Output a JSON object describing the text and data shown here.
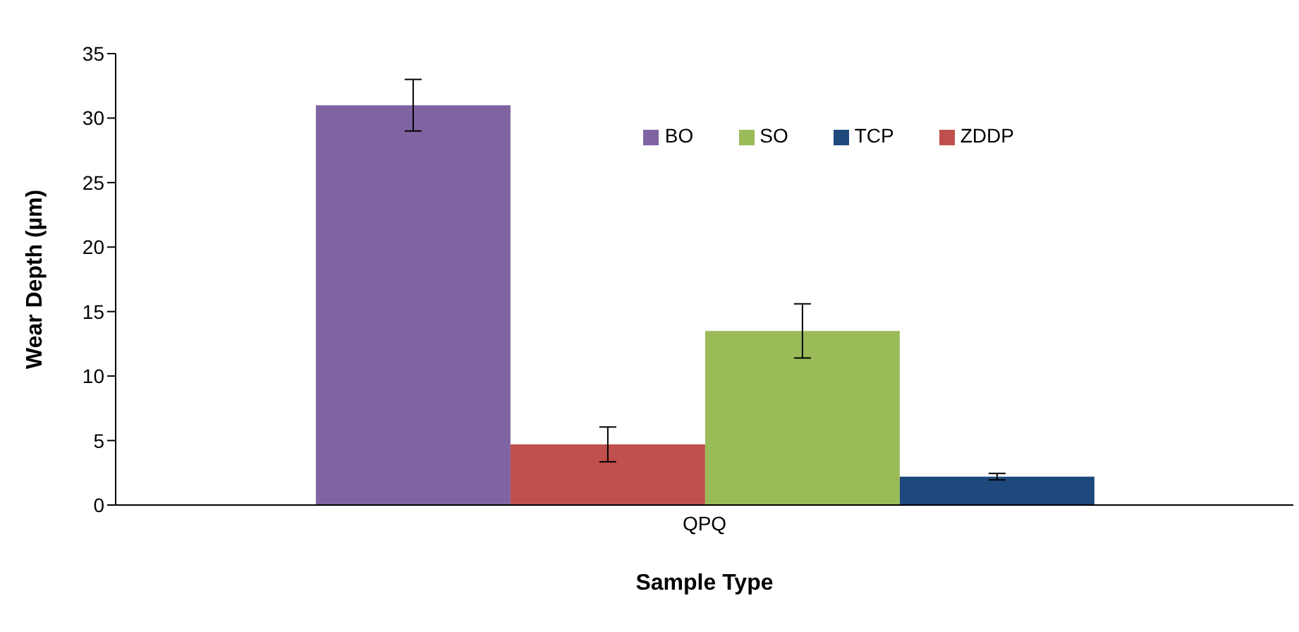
{
  "chart_data": {
    "type": "bar",
    "xlabel": "Sample Type",
    "ylabel": "Wear Depth (µm)",
    "categories": [
      "QPQ"
    ],
    "series": [
      {
        "name": "BO",
        "color": "#8064a2",
        "values": [
          31
        ],
        "errors": [
          2
        ]
      },
      {
        "name": "ZDDP",
        "color": "#c0504d",
        "values": [
          4.7
        ],
        "errors": [
          1.35
        ]
      },
      {
        "name": "SO",
        "color": "#9bbb59",
        "values": [
          13.5
        ],
        "errors": [
          2.1
        ]
      },
      {
        "name": "TCP",
        "color": "#1f497d",
        "values": [
          2.2
        ],
        "errors": [
          0.25
        ]
      }
    ],
    "ylim": [
      0,
      35
    ],
    "yticks": [
      0,
      5,
      10,
      15,
      20,
      25,
      30,
      35
    ],
    "grid": false,
    "legend": "top right"
  }
}
